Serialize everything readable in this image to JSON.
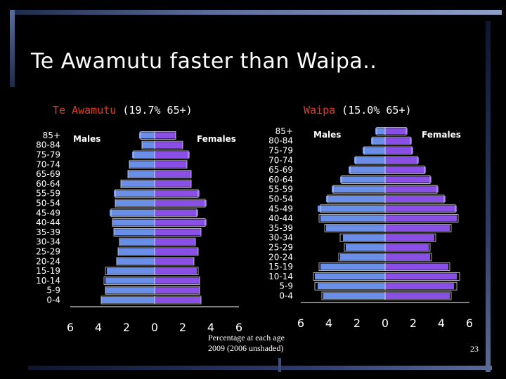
{
  "slide": {
    "title": "Te Awamutu faster than Waipa..",
    "caption_line1": "Percentage at each age",
    "caption_line2": "2009  (2006 unshaded)",
    "page_number": "23"
  },
  "colors": {
    "males": "#6a8fe8",
    "females": "#8a4fe6",
    "highlight": "#e23c1e",
    "outline_2006": "#d9d9d9"
  },
  "chart_data": [
    {
      "type": "bar",
      "orientation": "population-pyramid",
      "title_name": "Te Awamutu",
      "title_rest": " (19.7% 65+)",
      "left_label": "Males",
      "right_label": "Females",
      "age_groups": [
        "85+",
        "80-84",
        "75-79",
        "70-74",
        "65-69",
        "60-64",
        "55-59",
        "50-54",
        "45-49",
        "40-44",
        "35-39",
        "30-34",
        "25-29",
        "20-24",
        "15-19",
        "10-14",
        "5-9",
        "0-4"
      ],
      "x_ticks": [
        "6",
        "4",
        "2",
        "0",
        "2",
        "4",
        "6"
      ],
      "xlim": [
        -6,
        6
      ],
      "series": [
        {
          "name": "Males",
          "year": "2009",
          "values": [
            1.1,
            0.9,
            1.6,
            1.8,
            1.9,
            2.4,
            2.9,
            2.8,
            3.2,
            3.0,
            2.9,
            2.5,
            2.6,
            2.7,
            3.4,
            3.5,
            3.5,
            3.8
          ]
        },
        {
          "name": "Females",
          "year": "2009",
          "values": [
            1.5,
            2.0,
            2.5,
            2.3,
            2.6,
            2.6,
            3.2,
            3.7,
            3.1,
            3.7,
            3.3,
            2.9,
            3.1,
            2.8,
            3.0,
            3.2,
            3.2,
            3.3
          ]
        },
        {
          "name": "Males",
          "year": "2006",
          "values": [
            1.0,
            0.9,
            1.5,
            1.8,
            1.9,
            2.4,
            2.8,
            2.8,
            3.1,
            3.0,
            2.9,
            2.5,
            2.6,
            2.7,
            3.5,
            3.6,
            3.5,
            3.8
          ]
        },
        {
          "name": "Females",
          "year": "2006",
          "values": [
            1.5,
            2.0,
            2.4,
            2.3,
            2.6,
            2.6,
            3.1,
            3.6,
            3.0,
            3.6,
            3.3,
            2.9,
            3.1,
            2.8,
            3.1,
            3.2,
            3.2,
            3.3
          ]
        }
      ]
    },
    {
      "type": "bar",
      "orientation": "population-pyramid",
      "title_name": "Waipa",
      "title_rest": " (15.0% 65+)",
      "left_label": "Males",
      "right_label": "Females",
      "age_groups": [
        "85+",
        "80-84",
        "75-79",
        "70-74",
        "65-69",
        "60-64",
        "55-59",
        "50-54",
        "45-49",
        "40-44",
        "35-39",
        "30-34",
        "25-29",
        "20-24",
        "15-19",
        "10-14",
        "5-9",
        "0-4"
      ],
      "x_ticks": [
        "6",
        "4",
        "2",
        "0",
        "2",
        "4",
        "6"
      ],
      "xlim": [
        -6,
        6
      ],
      "series": [
        {
          "name": "Males",
          "year": "2009",
          "values": [
            0.7,
            1.0,
            1.6,
            2.2,
            2.6,
            3.2,
            3.8,
            4.2,
            4.8,
            4.6,
            4.2,
            3.0,
            2.8,
            3.2,
            4.6,
            5.0,
            4.8,
            4.4
          ]
        },
        {
          "name": "Females",
          "year": "2009",
          "values": [
            1.6,
            1.9,
            2.0,
            2.4,
            2.9,
            3.3,
            3.8,
            4.3,
            5.1,
            5.1,
            4.6,
            3.5,
            3.1,
            3.2,
            4.5,
            5.1,
            4.9,
            4.6
          ]
        },
        {
          "name": "Males",
          "year": "2006",
          "values": [
            0.6,
            0.9,
            1.5,
            2.1,
            2.5,
            3.1,
            3.7,
            4.1,
            4.6,
            4.7,
            4.3,
            3.2,
            2.9,
            3.3,
            4.7,
            5.1,
            5.0,
            4.5
          ]
        },
        {
          "name": "Females",
          "year": "2006",
          "values": [
            1.5,
            1.8,
            1.9,
            2.3,
            2.8,
            3.2,
            3.7,
            4.2,
            5.0,
            5.2,
            4.7,
            3.6,
            3.2,
            3.3,
            4.6,
            5.3,
            5.1,
            4.7
          ]
        }
      ]
    }
  ]
}
